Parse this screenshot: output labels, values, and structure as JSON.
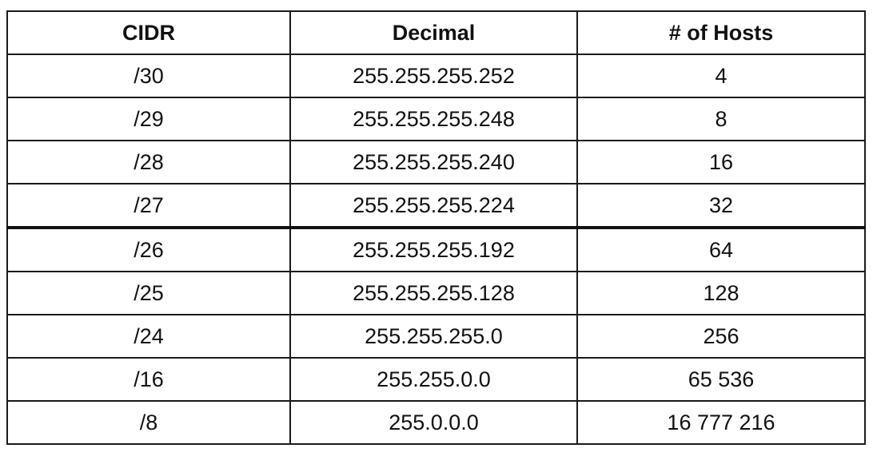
{
  "table": {
    "headers": [
      "CIDR",
      "Decimal",
      "# of Hosts"
    ],
    "rows": [
      [
        "/30",
        "255.255.255.252",
        "4"
      ],
      [
        "/29",
        "255.255.255.248",
        "8"
      ],
      [
        "/28",
        "255.255.255.240",
        "16"
      ],
      [
        "/27",
        "255.255.255.224",
        "32"
      ],
      [
        "/26",
        "255.255.255.192",
        "64"
      ],
      [
        "/25",
        "255.255.255.128",
        "128"
      ],
      [
        "/24",
        "255.255.255.0",
        "256"
      ],
      [
        "/16",
        "255.255.0.0",
        "65 536"
      ],
      [
        "/8",
        "255.0.0.0",
        "16 777 216"
      ]
    ]
  }
}
